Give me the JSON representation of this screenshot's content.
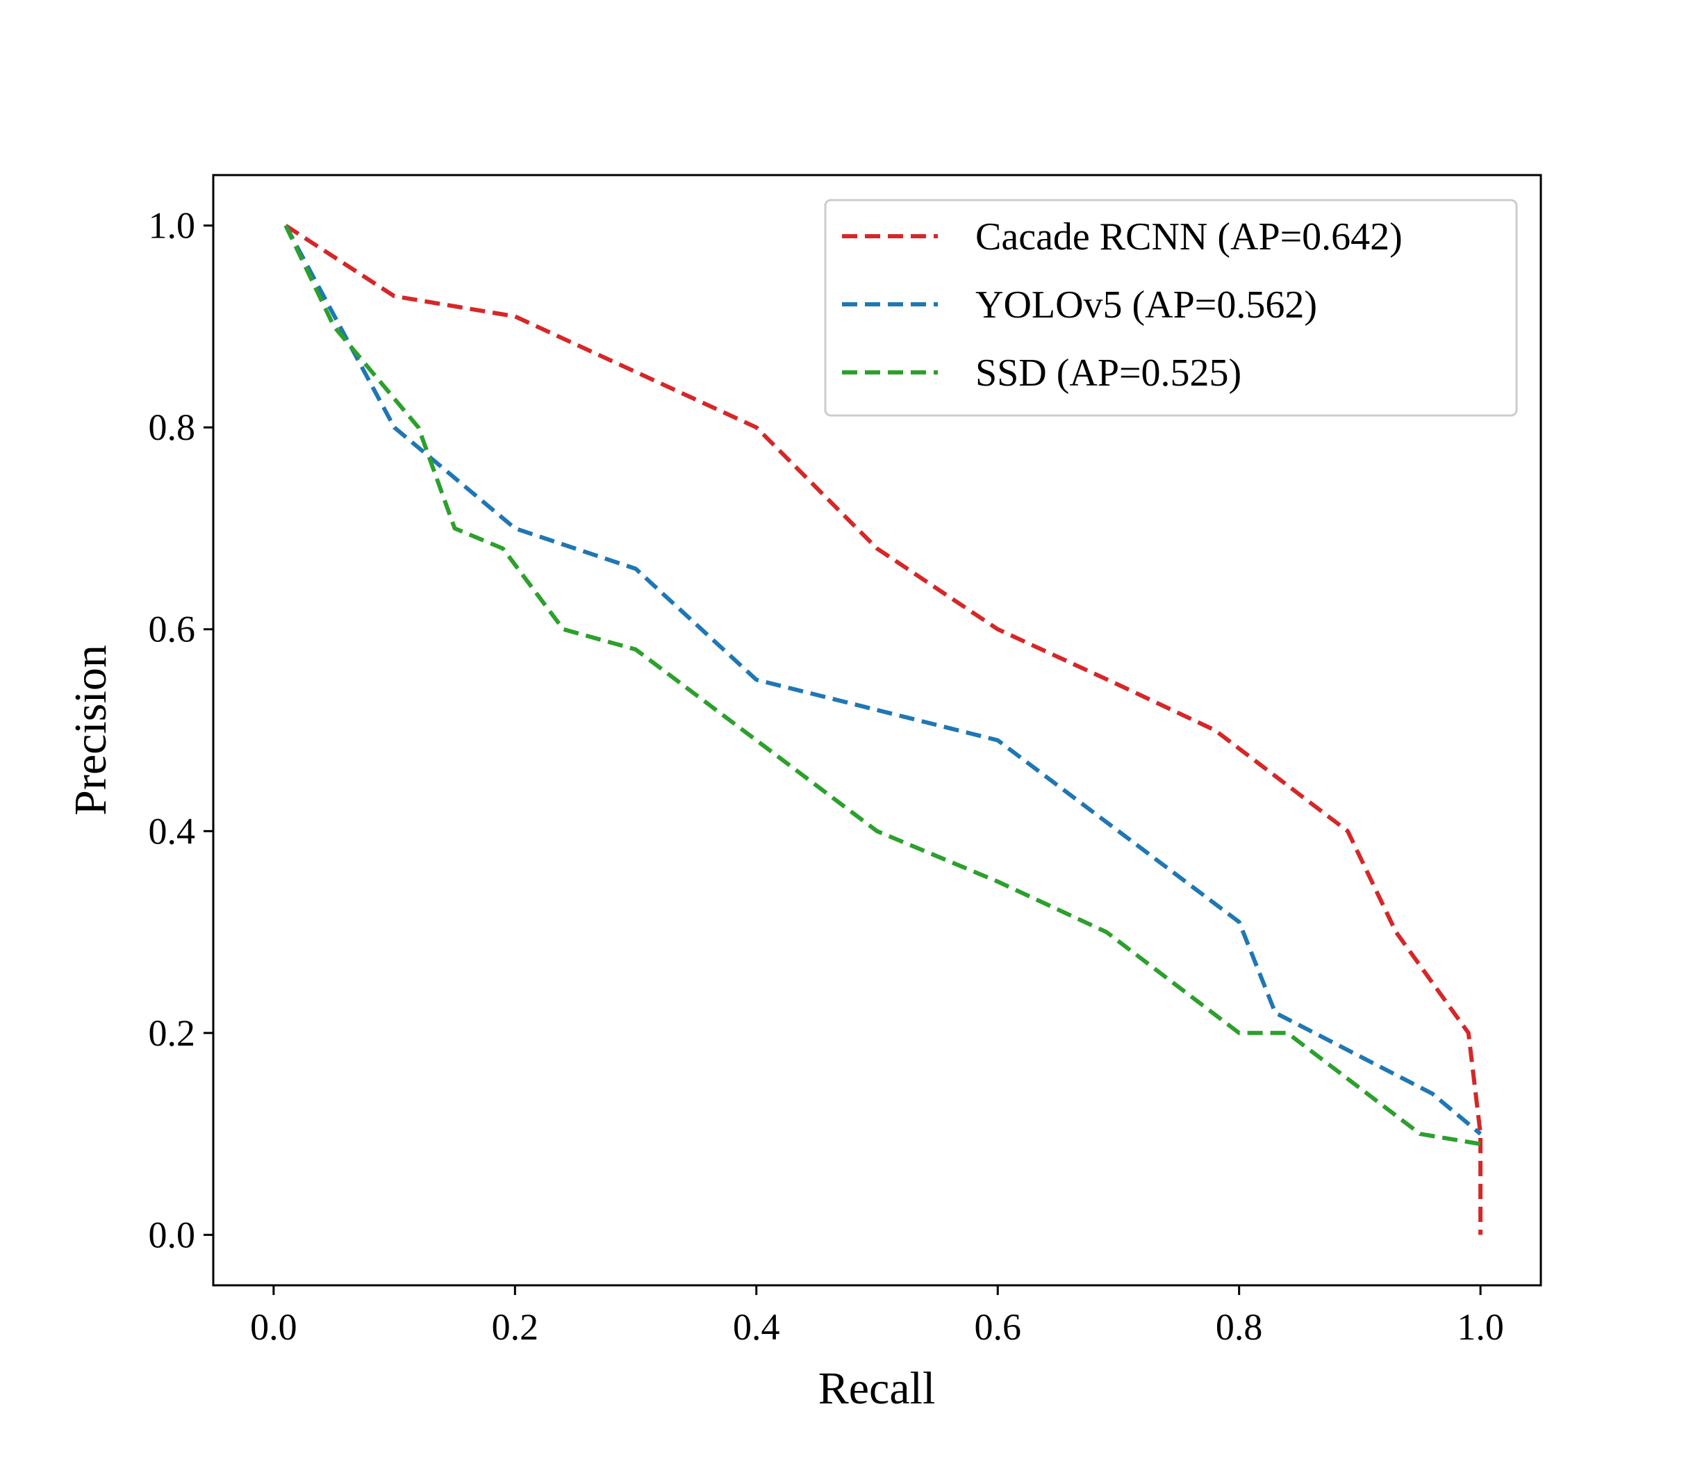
{
  "chart_data": {
    "type": "line",
    "title": "",
    "xlabel": "Recall",
    "ylabel": "Precision",
    "xlim": [
      -0.05,
      1.05
    ],
    "ylim": [
      -0.05,
      1.05
    ],
    "xticks": [
      0.0,
      0.2,
      0.4,
      0.6,
      0.8,
      1.0
    ],
    "yticks": [
      0.0,
      0.2,
      0.4,
      0.6,
      0.8,
      1.0
    ],
    "xtick_labels": [
      "0.0",
      "0.2",
      "0.4",
      "0.6",
      "0.8",
      "1.0"
    ],
    "ytick_labels": [
      "0.0",
      "0.2",
      "0.4",
      "0.6",
      "0.8",
      "1.0"
    ],
    "grid": false,
    "legend_position": "top-right",
    "line_style": "dashed",
    "series": [
      {
        "name": "Cacade RCNN (AP=0.642)",
        "color": "#d62728",
        "x": [
          0.01,
          0.1,
          0.2,
          0.3,
          0.4,
          0.5,
          0.6,
          0.7,
          0.78,
          0.89,
          0.93,
          0.99,
          1.0,
          1.0
        ],
        "y": [
          1.0,
          0.93,
          0.91,
          0.855,
          0.8,
          0.68,
          0.6,
          0.545,
          0.5,
          0.4,
          0.3,
          0.2,
          0.1,
          0.0
        ]
      },
      {
        "name": "YOLOv5 (AP=0.562)",
        "color": "#1f77b4",
        "x": [
          0.01,
          0.1,
          0.2,
          0.3,
          0.4,
          0.5,
          0.6,
          0.7,
          0.8,
          0.83,
          0.96,
          1.0
        ],
        "y": [
          1.0,
          0.8,
          0.7,
          0.66,
          0.55,
          0.52,
          0.49,
          0.4,
          0.31,
          0.22,
          0.14,
          0.1
        ]
      },
      {
        "name": "SSD (AP=0.525)",
        "color": "#2ca02c",
        "x": [
          0.01,
          0.05,
          0.12,
          0.15,
          0.19,
          0.24,
          0.3,
          0.4,
          0.5,
          0.6,
          0.69,
          0.8,
          0.84,
          0.95,
          1.0
        ],
        "y": [
          1.0,
          0.9,
          0.8,
          0.7,
          0.68,
          0.6,
          0.58,
          0.49,
          0.4,
          0.35,
          0.3,
          0.2,
          0.2,
          0.1,
          0.09
        ]
      }
    ]
  }
}
